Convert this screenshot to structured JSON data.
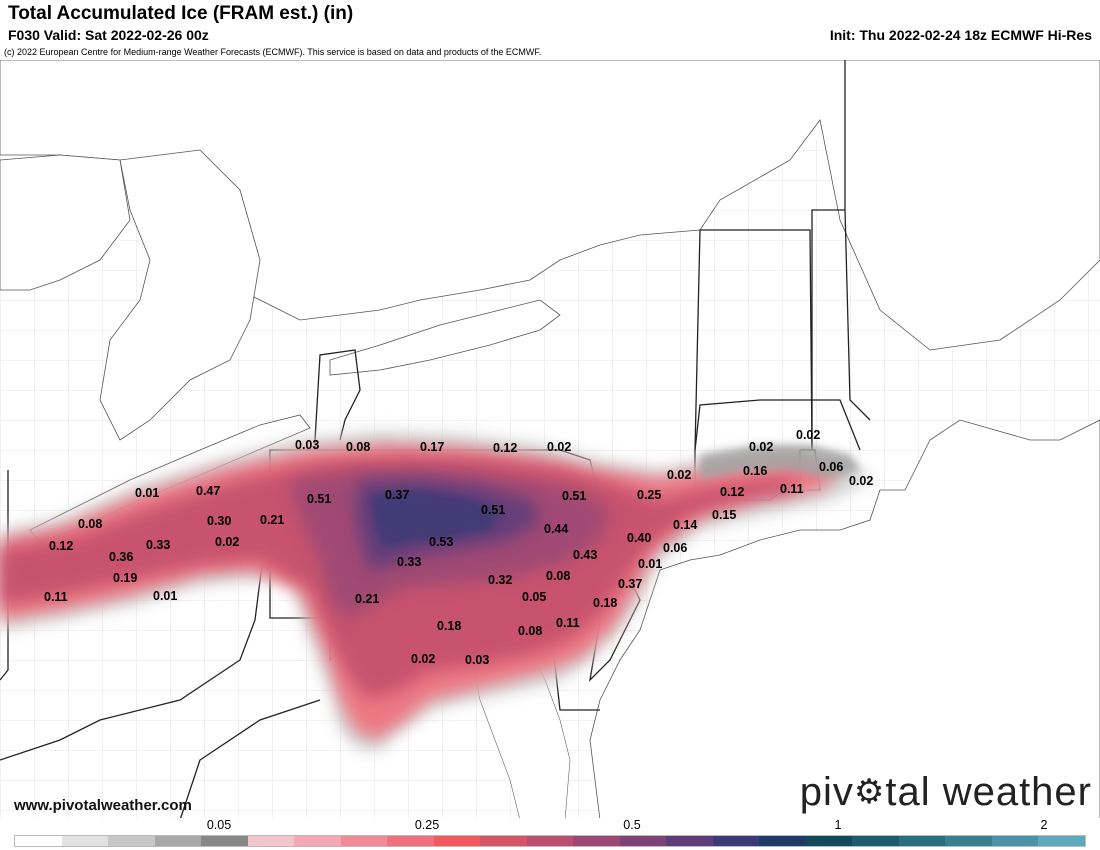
{
  "header": {
    "title": "Total Accumulated Ice (FRAM est.) (in)",
    "valid": "F030 Valid: Sat 2022-02-26 00z",
    "init": "Init: Thu 2022-02-24 18z ECMWF Hi-Res",
    "copyright": "(c) 2022 European Centre for Medium-range Weather Forecasts (ECMWF). This service is based on data and products of the ECMWF."
  },
  "branding": {
    "watermark_pre": "piv",
    "watermark_post": "tal weather",
    "url": "www.pivotalweather.com"
  },
  "colorbar": {
    "ticks": [
      "0.05",
      "0.25",
      "0.5",
      "1",
      "2"
    ],
    "colors": [
      "#ffffff",
      "#e2e2e2",
      "#c8c8c8",
      "#a8a8a8",
      "#888888",
      "#f2c4cc",
      "#f4a8b4",
      "#f08c98",
      "#f0707c",
      "#f05a5e",
      "#d65468",
      "#b94e6e",
      "#9c4874",
      "#7e4278",
      "#5e3c7a",
      "#3c3a76",
      "#1e3a66",
      "#14485e",
      "#1e5a70",
      "#2a6c80",
      "#3a7e92",
      "#4c92a8",
      "#60a8be"
    ]
  },
  "ice_values": [
    {
      "text": "0.03"
    },
    {
      "text": "0.08"
    },
    {
      "text": "0.17"
    },
    {
      "text": "0.12"
    },
    {
      "text": "0.02"
    },
    {
      "text": "0.02"
    },
    {
      "text": "0.02"
    },
    {
      "text": "0.06"
    },
    {
      "text": "0.02"
    },
    {
      "text": "0.02"
    },
    {
      "text": "0.16"
    },
    {
      "text": "0.12"
    },
    {
      "text": "0.11"
    },
    {
      "text": "0.25"
    },
    {
      "text": "0.51"
    },
    {
      "text": "0.37"
    },
    {
      "text": "0.51"
    },
    {
      "text": "0.01"
    },
    {
      "text": "0.47"
    },
    {
      "text": "0.08"
    },
    {
      "text": "0.30"
    },
    {
      "text": "0.21"
    },
    {
      "text": "0.12"
    },
    {
      "text": "0.36"
    },
    {
      "text": "0.33"
    },
    {
      "text": "0.02"
    },
    {
      "text": "0.19"
    },
    {
      "text": "0.11"
    },
    {
      "text": "0.01"
    },
    {
      "text": "0.51"
    },
    {
      "text": "0.44"
    },
    {
      "text": "0.14"
    },
    {
      "text": "0.15"
    },
    {
      "text": "0.40"
    },
    {
      "text": "0.06"
    },
    {
      "text": "0.43"
    },
    {
      "text": "0.53"
    },
    {
      "text": "0.33"
    },
    {
      "text": "0.32"
    },
    {
      "text": "0.08"
    },
    {
      "text": "0.01"
    },
    {
      "text": "0.37"
    },
    {
      "text": "0.21"
    },
    {
      "text": "0.05"
    },
    {
      "text": "0.18"
    },
    {
      "text": "0.18"
    },
    {
      "text": "0.08"
    },
    {
      "text": "0.11"
    },
    {
      "text": "0.02"
    },
    {
      "text": "0.03"
    }
  ]
}
